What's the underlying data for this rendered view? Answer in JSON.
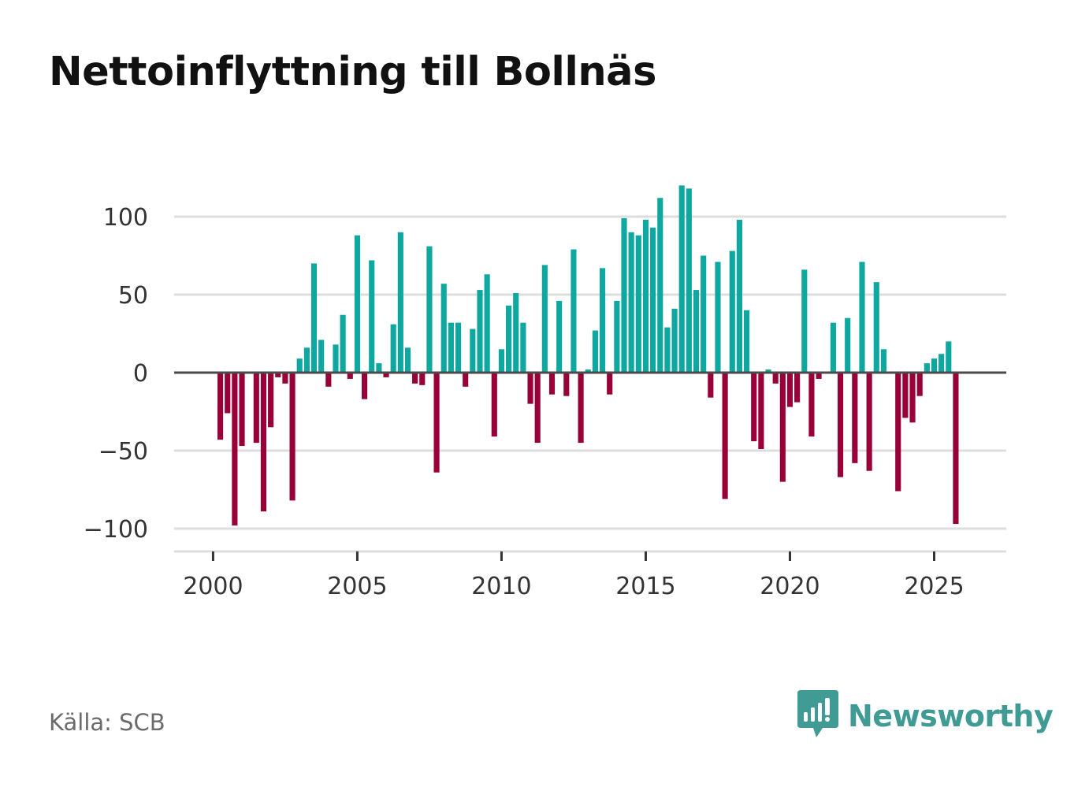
{
  "title": "Nettoinflyttning till Bollnäs",
  "source": "Källa: SCB",
  "brand": {
    "name": "Newsworthy",
    "icon": "chart-bubble-icon",
    "color": "#3f9b94"
  },
  "colors": {
    "positive": "#0ea8a0",
    "negative": "#990038",
    "zero_line": "#4a4a4a",
    "grid": "#dddddd"
  },
  "chart_data": {
    "type": "bar",
    "title": "Nettoinflyttning till Bollnäs",
    "xlabel": "",
    "ylabel": "",
    "x_ticks": [
      "2000",
      "2005",
      "2010",
      "2015",
      "2020",
      "2025"
    ],
    "y_ticks": [
      "100",
      "50",
      "0",
      "−50",
      "−100"
    ],
    "y_tick_values": [
      100,
      50,
      0,
      -50,
      -100
    ],
    "xlim": [
      1998.65,
      2027.5
    ],
    "ylim": [
      -115,
      132
    ],
    "grid": true,
    "periods": [
      "2000 Q1",
      "2000 Q2",
      "2000 Q3",
      "2000 Q4",
      "2001 Q1",
      "2001 Q2",
      "2001 Q3",
      "2001 Q4",
      "2002 Q1",
      "2002 Q2",
      "2002 Q3",
      "2002 Q4",
      "2003 Q1",
      "2003 Q2",
      "2003 Q3",
      "2003 Q4",
      "2004 Q1",
      "2004 Q2",
      "2004 Q3",
      "2004 Q4",
      "2005 Q1",
      "2005 Q2",
      "2005 Q3",
      "2005 Q4",
      "2006 Q1",
      "2006 Q2",
      "2006 Q3",
      "2006 Q4",
      "2007 Q1",
      "2007 Q2",
      "2007 Q3",
      "2007 Q4",
      "2008 Q1",
      "2008 Q2",
      "2008 Q3",
      "2008 Q4",
      "2009 Q1",
      "2009 Q2",
      "2009 Q3",
      "2009 Q4",
      "2010 Q1",
      "2010 Q2",
      "2010 Q3",
      "2010 Q4",
      "2011 Q1",
      "2011 Q2",
      "2011 Q3",
      "2011 Q4",
      "2012 Q1",
      "2012 Q2",
      "2012 Q3",
      "2012 Q4",
      "2013 Q1",
      "2013 Q2",
      "2013 Q3",
      "2013 Q4",
      "2014 Q1",
      "2014 Q2",
      "2014 Q3",
      "2014 Q4",
      "2015 Q1",
      "2015 Q2",
      "2015 Q3",
      "2015 Q4",
      "2016 Q1",
      "2016 Q2",
      "2016 Q3",
      "2016 Q4",
      "2017 Q1",
      "2017 Q2",
      "2017 Q3",
      "2017 Q4",
      "2018 Q1",
      "2018 Q2",
      "2018 Q3",
      "2018 Q4",
      "2019 Q1",
      "2019 Q2",
      "2019 Q3",
      "2019 Q4",
      "2020 Q1",
      "2020 Q2",
      "2020 Q3",
      "2020 Q4",
      "2021 Q1",
      "2021 Q2",
      "2021 Q3",
      "2021 Q4",
      "2022 Q1",
      "2022 Q2",
      "2022 Q3",
      "2022 Q4",
      "2023 Q1",
      "2023 Q2",
      "2023 Q3",
      "2023 Q4",
      "2024 Q1",
      "2024 Q2",
      "2024 Q3",
      "2024 Q4",
      "2025 Q1",
      "2025 Q2",
      "2025 Q3",
      "2025 Q4"
    ],
    "values": [
      0,
      -43,
      -26,
      -98,
      -47,
      0,
      -45,
      -89,
      -35,
      -3,
      -7,
      -82,
      9,
      16,
      70,
      21,
      -9,
      18,
      37,
      -4,
      88,
      -17,
      72,
      6,
      -3,
      31,
      90,
      16,
      -7,
      -8,
      81,
      -64,
      57,
      32,
      32,
      -9,
      28,
      53,
      63,
      -41,
      15,
      43,
      51,
      32,
      -20,
      -45,
      69,
      -14,
      46,
      -15,
      79,
      -45,
      2,
      27,
      67,
      -14,
      46,
      99,
      90,
      88,
      98,
      93,
      112,
      29,
      41,
      120,
      118,
      53,
      75,
      -16,
      71,
      -81,
      78,
      98,
      40,
      -44,
      -49,
      2,
      -7,
      -70,
      -22,
      -19,
      66,
      -41,
      -4,
      0,
      32,
      -67,
      35,
      -58,
      71,
      -63,
      58,
      15,
      0,
      -76,
      -29,
      -32,
      -15,
      6,
      9,
      12,
      20,
      -97
    ]
  }
}
